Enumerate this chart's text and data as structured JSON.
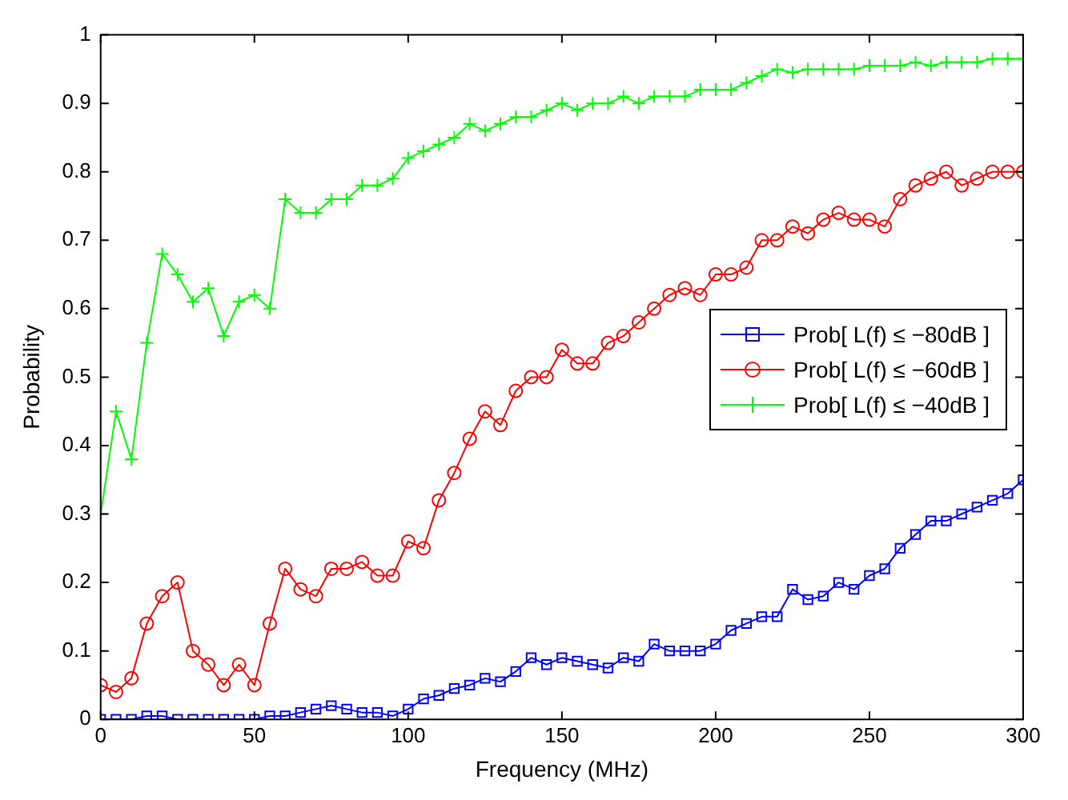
{
  "chart_data": {
    "type": "line",
    "xlabel": "Frequency (MHz)",
    "ylabel": "Probability",
    "x": [
      0,
      5,
      10,
      15,
      20,
      25,
      30,
      35,
      40,
      45,
      50,
      55,
      60,
      65,
      70,
      75,
      80,
      85,
      90,
      95,
      100,
      105,
      110,
      115,
      120,
      125,
      130,
      135,
      140,
      145,
      150,
      155,
      160,
      165,
      170,
      175,
      180,
      185,
      190,
      195,
      200,
      205,
      210,
      215,
      220,
      225,
      230,
      235,
      240,
      245,
      250,
      255,
      260,
      265,
      270,
      275,
      280,
      285,
      290,
      295,
      300
    ],
    "series": [
      {
        "name": "Prob[ L(f) ≤ −80dB ]",
        "color": "#0000ff",
        "marker": "square",
        "values": [
          0,
          0,
          0,
          0.005,
          0.005,
          0,
          0,
          0,
          0,
          0,
          0,
          0.005,
          0.005,
          0.01,
          0.015,
          0.02,
          0.015,
          0.01,
          0.01,
          0.005,
          0.015,
          0.03,
          0.035,
          0.045,
          0.05,
          0.06,
          0.055,
          0.07,
          0.09,
          0.08,
          0.09,
          0.085,
          0.08,
          0.075,
          0.09,
          0.085,
          0.11,
          0.1,
          0.1,
          0.1,
          0.11,
          0.13,
          0.14,
          0.15,
          0.15,
          0.19,
          0.175,
          0.18,
          0.2,
          0.19,
          0.21,
          0.22,
          0.25,
          0.27,
          0.29,
          0.29,
          0.3,
          0.31,
          0.32,
          0.33,
          0.35
        ]
      },
      {
        "name": "Prob[ L(f) ≤ −60dB ]",
        "color": "#ff0000",
        "marker": "circle",
        "values": [
          0.05,
          0.04,
          0.06,
          0.14,
          0.18,
          0.2,
          0.1,
          0.08,
          0.05,
          0.08,
          0.05,
          0.14,
          0.22,
          0.19,
          0.18,
          0.22,
          0.22,
          0.23,
          0.21,
          0.21,
          0.26,
          0.25,
          0.32,
          0.36,
          0.41,
          0.45,
          0.43,
          0.48,
          0.5,
          0.5,
          0.54,
          0.52,
          0.52,
          0.55,
          0.56,
          0.58,
          0.6,
          0.62,
          0.63,
          0.62,
          0.65,
          0.65,
          0.66,
          0.7,
          0.7,
          0.72,
          0.71,
          0.73,
          0.74,
          0.73,
          0.73,
          0.72,
          0.76,
          0.78,
          0.79,
          0.8,
          0.78,
          0.79,
          0.8,
          0.8,
          0.8
        ]
      },
      {
        "name": "Prob[ L(f) ≤ −40dB ]",
        "color": "#00ff00",
        "marker": "cross",
        "values": [
          0.3,
          0.45,
          0.38,
          0.55,
          0.68,
          0.65,
          0.61,
          0.63,
          0.56,
          0.61,
          0.62,
          0.6,
          0.76,
          0.74,
          0.74,
          0.76,
          0.76,
          0.78,
          0.78,
          0.79,
          0.82,
          0.83,
          0.84,
          0.85,
          0.87,
          0.86,
          0.87,
          0.88,
          0.88,
          0.89,
          0.9,
          0.89,
          0.9,
          0.9,
          0.91,
          0.9,
          0.91,
          0.91,
          0.91,
          0.92,
          0.92,
          0.92,
          0.93,
          0.94,
          0.95,
          0.945,
          0.95,
          0.95,
          0.95,
          0.95,
          0.955,
          0.955,
          0.955,
          0.96,
          0.955,
          0.96,
          0.96,
          0.96,
          0.965,
          0.965,
          0.965
        ]
      }
    ],
    "xlim": [
      0,
      300
    ],
    "xticks": [
      0,
      50,
      100,
      150,
      200,
      250,
      300
    ],
    "ylim": [
      0,
      1
    ],
    "yticks": [
      0,
      0.1,
      0.2,
      0.3,
      0.4,
      0.5,
      0.6,
      0.7,
      0.8,
      0.9,
      1
    ],
    "grid": false,
    "legend": "right",
    "line_style": "solid"
  }
}
